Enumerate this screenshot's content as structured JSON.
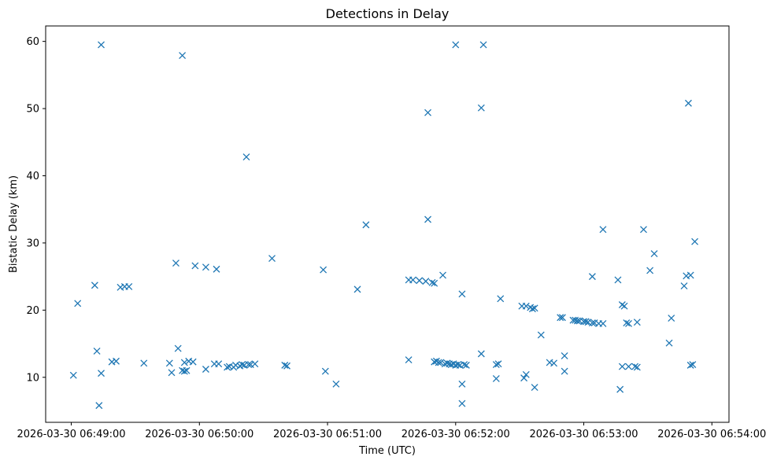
{
  "chart_data": {
    "type": "scatter",
    "title": "Detections in Delay",
    "xlabel": "Time (UTC)",
    "ylabel": "Bistatic Delay (km)",
    "marker": "x",
    "color": "#1f77b4",
    "grid": false,
    "xlim": [
      "2026-03-30 06:48:48",
      "2026-03-30 06:54:08"
    ],
    "ylim": [
      3.3,
      62.3
    ],
    "x_ticks": [
      "2026-03-30 06:49:00",
      "2026-03-30 06:50:00",
      "2026-03-30 06:51:00",
      "2026-03-30 06:52:00",
      "2026-03-30 06:53:00",
      "2026-03-30 06:54:00"
    ],
    "y_ticks": [
      10,
      20,
      30,
      40,
      50,
      60
    ],
    "points": [
      [
        "2026-03-30 06:49:01",
        10.3
      ],
      [
        "2026-03-30 06:49:03",
        21.0
      ],
      [
        "2026-03-30 06:49:11",
        23.7
      ],
      [
        "2026-03-30 06:49:12",
        13.9
      ],
      [
        "2026-03-30 06:49:13",
        5.8
      ],
      [
        "2026-03-30 06:49:14",
        10.6
      ],
      [
        "2026-03-30 06:49:14",
        59.5
      ],
      [
        "2026-03-30 06:49:19",
        12.3
      ],
      [
        "2026-03-30 06:49:21",
        12.4
      ],
      [
        "2026-03-30 06:49:23",
        23.4
      ],
      [
        "2026-03-30 06:49:25",
        23.5
      ],
      [
        "2026-03-30 06:49:27",
        23.5
      ],
      [
        "2026-03-30 06:49:34",
        12.1
      ],
      [
        "2026-03-30 06:49:46",
        12.1
      ],
      [
        "2026-03-30 06:49:47",
        10.7
      ],
      [
        "2026-03-30 06:49:49",
        27.0
      ],
      [
        "2026-03-30 06:49:50",
        14.3
      ],
      [
        "2026-03-30 06:49:52",
        11.0
      ],
      [
        "2026-03-30 06:49:52",
        57.9
      ],
      [
        "2026-03-30 06:49:53",
        12.2
      ],
      [
        "2026-03-30 06:49:53",
        10.9
      ],
      [
        "2026-03-30 06:49:54",
        11.0
      ],
      [
        "2026-03-30 06:49:55",
        12.4
      ],
      [
        "2026-03-30 06:49:57",
        12.3
      ],
      [
        "2026-03-30 06:49:58",
        26.6
      ],
      [
        "2026-03-30 06:50:03",
        26.4
      ],
      [
        "2026-03-30 06:50:03",
        11.2
      ],
      [
        "2026-03-30 06:50:07",
        12.0
      ],
      [
        "2026-03-30 06:50:08",
        26.1
      ],
      [
        "2026-03-30 06:50:09",
        12.0
      ],
      [
        "2026-03-30 06:50:13",
        11.5
      ],
      [
        "2026-03-30 06:50:14",
        11.6
      ],
      [
        "2026-03-30 06:50:16",
        11.5
      ],
      [
        "2026-03-30 06:50:17",
        11.8
      ],
      [
        "2026-03-30 06:50:19",
        11.7
      ],
      [
        "2026-03-30 06:50:20",
        11.9
      ],
      [
        "2026-03-30 06:50:21",
        11.8
      ],
      [
        "2026-03-30 06:50:22",
        42.8
      ],
      [
        "2026-03-30 06:50:23",
        11.9
      ],
      [
        "2026-03-30 06:50:24",
        11.9
      ],
      [
        "2026-03-30 06:50:26",
        12.0
      ],
      [
        "2026-03-30 06:50:34",
        27.7
      ],
      [
        "2026-03-30 06:50:40",
        11.8
      ],
      [
        "2026-03-30 06:50:41",
        11.7
      ],
      [
        "2026-03-30 06:50:58",
        26.0
      ],
      [
        "2026-03-30 06:50:59",
        10.9
      ],
      [
        "2026-03-30 06:51:04",
        9.0
      ],
      [
        "2026-03-30 06:51:14",
        23.1
      ],
      [
        "2026-03-30 06:51:18",
        32.7
      ],
      [
        "2026-03-30 06:51:38",
        24.5
      ],
      [
        "2026-03-30 06:51:38",
        12.6
      ],
      [
        "2026-03-30 06:51:40",
        24.5
      ],
      [
        "2026-03-30 06:51:43",
        24.4
      ],
      [
        "2026-03-30 06:51:46",
        24.3
      ],
      [
        "2026-03-30 06:51:47",
        33.5
      ],
      [
        "2026-03-30 06:51:47",
        49.4
      ],
      [
        "2026-03-30 06:51:49",
        24.1
      ],
      [
        "2026-03-30 06:51:50",
        24.0
      ],
      [
        "2026-03-30 06:51:50",
        12.3
      ],
      [
        "2026-03-30 06:51:51",
        12.4
      ],
      [
        "2026-03-30 06:51:52",
        12.2
      ],
      [
        "2026-03-30 06:51:53",
        12.2
      ],
      [
        "2026-03-30 06:51:54",
        25.2
      ],
      [
        "2026-03-30 06:51:55",
        12.0
      ],
      [
        "2026-03-30 06:51:56",
        12.1
      ],
      [
        "2026-03-30 06:51:57",
        12.0
      ],
      [
        "2026-03-30 06:51:58",
        11.9
      ],
      [
        "2026-03-30 06:51:59",
        12.0
      ],
      [
        "2026-03-30 06:52:00",
        11.8
      ],
      [
        "2026-03-30 06:52:00",
        59.5
      ],
      [
        "2026-03-30 06:52:01",
        11.9
      ],
      [
        "2026-03-30 06:52:02",
        11.8
      ],
      [
        "2026-03-30 06:52:03",
        6.1
      ],
      [
        "2026-03-30 06:52:03",
        22.4
      ],
      [
        "2026-03-30 06:52:03",
        9.0
      ],
      [
        "2026-03-30 06:52:04",
        11.9
      ],
      [
        "2026-03-30 06:52:05",
        11.8
      ],
      [
        "2026-03-30 06:52:12",
        50.1
      ],
      [
        "2026-03-30 06:52:12",
        13.5
      ],
      [
        "2026-03-30 06:52:13",
        59.5
      ],
      [
        "2026-03-30 06:52:19",
        11.9
      ],
      [
        "2026-03-30 06:52:19",
        9.8
      ],
      [
        "2026-03-30 06:52:20",
        12.0
      ],
      [
        "2026-03-30 06:52:21",
        21.7
      ],
      [
        "2026-03-30 06:52:31",
        20.6
      ],
      [
        "2026-03-30 06:52:32",
        9.9
      ],
      [
        "2026-03-30 06:52:33",
        20.6
      ],
      [
        "2026-03-30 06:52:33",
        10.4
      ],
      [
        "2026-03-30 06:52:35",
        20.4
      ],
      [
        "2026-03-30 06:52:36",
        20.2
      ],
      [
        "2026-03-30 06:52:37",
        20.3
      ],
      [
        "2026-03-30 06:52:37",
        8.5
      ],
      [
        "2026-03-30 06:52:40",
        16.3
      ],
      [
        "2026-03-30 06:52:44",
        12.2
      ],
      [
        "2026-03-30 06:52:46",
        12.1
      ],
      [
        "2026-03-30 06:52:49",
        18.9
      ],
      [
        "2026-03-30 06:52:50",
        18.9
      ],
      [
        "2026-03-30 06:52:51",
        13.2
      ],
      [
        "2026-03-30 06:52:51",
        10.9
      ],
      [
        "2026-03-30 06:52:55",
        18.5
      ],
      [
        "2026-03-30 06:52:56",
        18.5
      ],
      [
        "2026-03-30 06:52:57",
        18.4
      ],
      [
        "2026-03-30 06:52:58",
        18.4
      ],
      [
        "2026-03-30 06:53:00",
        18.3
      ],
      [
        "2026-03-30 06:53:01",
        18.3
      ],
      [
        "2026-03-30 06:53:02",
        18.2
      ],
      [
        "2026-03-30 06:53:04",
        18.1
      ],
      [
        "2026-03-30 06:53:05",
        18.1
      ],
      [
        "2026-03-30 06:53:04",
        25.0
      ],
      [
        "2026-03-30 06:53:07",
        18.0
      ],
      [
        "2026-03-30 06:53:09",
        18.0
      ],
      [
        "2026-03-30 06:53:09",
        32.0
      ],
      [
        "2026-03-30 06:53:16",
        24.5
      ],
      [
        "2026-03-30 06:53:17",
        8.2
      ],
      [
        "2026-03-30 06:53:18",
        20.8
      ],
      [
        "2026-03-30 06:53:18",
        11.6
      ],
      [
        "2026-03-30 06:53:19",
        20.6
      ],
      [
        "2026-03-30 06:53:20",
        18.1
      ],
      [
        "2026-03-30 06:53:21",
        18.0
      ],
      [
        "2026-03-30 06:53:21",
        11.6
      ],
      [
        "2026-03-30 06:53:24",
        11.6
      ],
      [
        "2026-03-30 06:53:25",
        18.2
      ],
      [
        "2026-03-30 06:53:25",
        11.5
      ],
      [
        "2026-03-30 06:53:28",
        32.0
      ],
      [
        "2026-03-30 06:53:31",
        25.9
      ],
      [
        "2026-03-30 06:53:33",
        28.4
      ],
      [
        "2026-03-30 06:53:40",
        15.1
      ],
      [
        "2026-03-30 06:53:41",
        18.8
      ],
      [
        "2026-03-30 06:53:47",
        23.6
      ],
      [
        "2026-03-30 06:53:48",
        25.1
      ],
      [
        "2026-03-30 06:53:49",
        50.8
      ],
      [
        "2026-03-30 06:53:50",
        25.2
      ],
      [
        "2026-03-30 06:53:50",
        11.8
      ],
      [
        "2026-03-30 06:53:51",
        11.9
      ],
      [
        "2026-03-30 06:53:52",
        30.2
      ]
    ]
  }
}
